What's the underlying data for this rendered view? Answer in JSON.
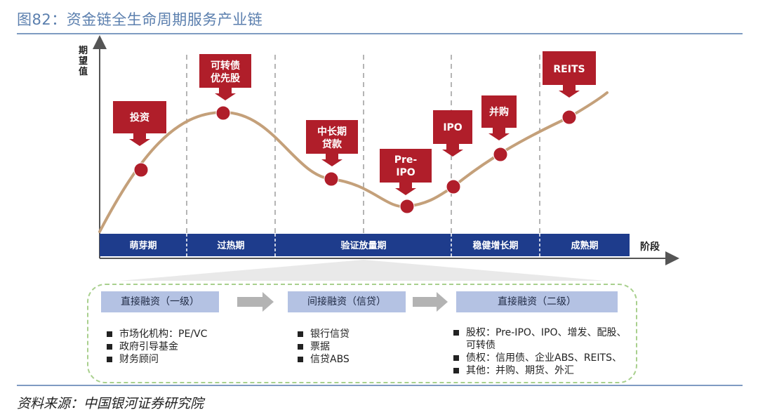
{
  "title": "图82：资金链全生命周期服务产业链",
  "source": "资料来源：中国银河证券研究院",
  "axes": {
    "y_label": [
      "期",
      "望",
      "值"
    ],
    "x_label": "阶段"
  },
  "stages": [
    "萌芽期",
    "过热期",
    "验证放量期",
    "稳健增长期",
    "成熟期"
  ],
  "callouts": [
    {
      "id": "invest",
      "lines": [
        "投资"
      ]
    },
    {
      "id": "convertible",
      "lines": [
        "可转债",
        "优先股"
      ]
    },
    {
      "id": "loan",
      "lines": [
        "中长期",
        "贷款"
      ]
    },
    {
      "id": "preipo",
      "lines": [
        "Pre-",
        "IPO"
      ]
    },
    {
      "id": "ipo",
      "lines": [
        "IPO"
      ]
    },
    {
      "id": "ma",
      "lines": [
        "并购"
      ]
    },
    {
      "id": "reits",
      "lines": [
        "REITS"
      ]
    }
  ],
  "financing": [
    {
      "header": "直接融资（一级）",
      "items": [
        "市场化机构：PE/VC",
        "政府引导基金",
        "财务顾问"
      ]
    },
    {
      "header": "间接融资（信贷）",
      "items": [
        "银行信贷",
        "票据",
        "信贷ABS"
      ]
    },
    {
      "header": "直接融资（二级）",
      "items": [
        "股权：Pre-IPO、IPO、增发、配股、\n可转债",
        "债权：信用债、企业ABS、REITS、",
        "其他：并购、期货、外汇"
      ]
    }
  ],
  "colors": {
    "box_red": "#b01e2a",
    "stage_blue": "#1e3c8c",
    "curve": "#c4a07a",
    "header_blue": "#b4c2e3",
    "panel_border": "#a9d08e",
    "title": "#5b7fae"
  }
}
